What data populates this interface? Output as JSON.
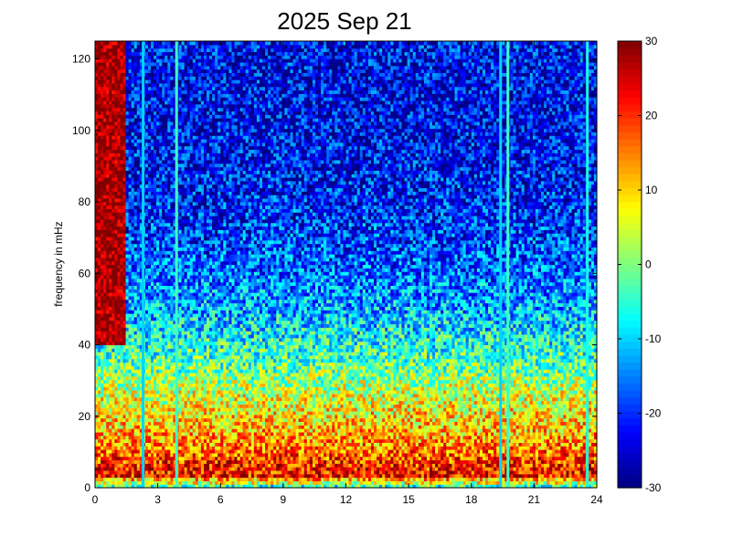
{
  "chart_data": {
    "type": "heatmap",
    "title": "2025 Sep 21",
    "xlabel": "",
    "ylabel": "frequency in mHz",
    "xlim": [
      0,
      24
    ],
    "ylim": [
      0,
      125
    ],
    "x_ticks": [
      "0",
      "3",
      "6",
      "9",
      "12",
      "15",
      "18",
      "21",
      "24"
    ],
    "y_ticks": [
      "0",
      "20",
      "40",
      "60",
      "80",
      "100",
      "120"
    ],
    "colorbar": {
      "range": [
        -30,
        30
      ],
      "ticks": [
        "30",
        "20",
        "10",
        "0",
        "-10",
        "-20",
        "-30"
      ],
      "colormap": "jet"
    },
    "grid": false,
    "intensity_profile": {
      "frequency_mhz": [
        0,
        1,
        2,
        3,
        5,
        8,
        12,
        18,
        25,
        32,
        40,
        50,
        60,
        70,
        80,
        90,
        100,
        110,
        120,
        125
      ],
      "typical_value": [
        -14,
        6,
        4,
        22,
        22,
        19,
        14,
        10,
        6,
        0,
        -6,
        -12,
        -16,
        -19,
        -21,
        -22,
        -23,
        -23,
        -23,
        -22
      ]
    },
    "high_level_region": {
      "x_range": [
        0,
        1.5
      ],
      "frequency_range": [
        40,
        125
      ],
      "value": 28
    },
    "stripes": [
      {
        "x": 2.3,
        "value": -10
      },
      {
        "x": 3.9,
        "value": -4
      },
      {
        "x": 19.4,
        "value": -10
      },
      {
        "x": 19.75,
        "value": -4
      },
      {
        "x": 23.55,
        "value": -6
      }
    ]
  }
}
